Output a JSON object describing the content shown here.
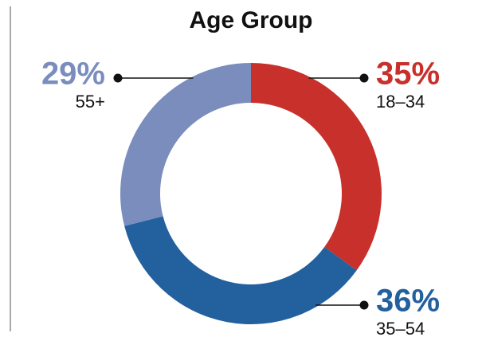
{
  "chart_data": {
    "type": "pie",
    "donut": true,
    "title": "Age Group",
    "categories": [
      "18–34",
      "35–54",
      "55+"
    ],
    "values": [
      35,
      36,
      29
    ],
    "value_labels": [
      "35%",
      "36%",
      "29%"
    ],
    "colors": [
      "#c8302c",
      "#22609e",
      "#7a8dbd"
    ]
  }
}
